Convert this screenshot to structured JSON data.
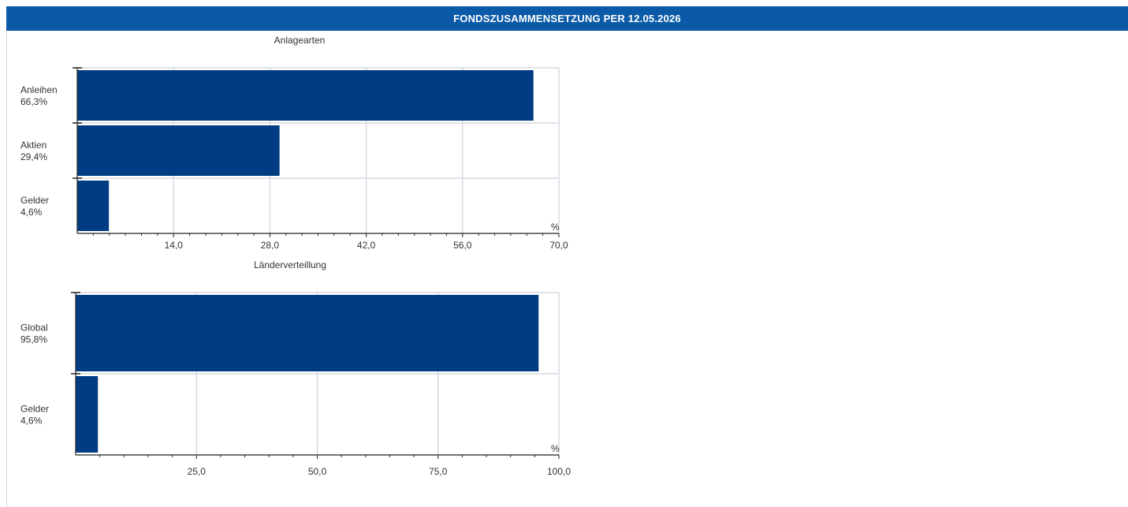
{
  "header": {
    "title": "FONDSZUSAMMENSETZUNG PER 12.05.2026"
  },
  "colors": {
    "header_bg": "#0b5aa7",
    "bar": "#003c82",
    "grid": "#d7dae4",
    "axis": "#222222"
  },
  "chart_data": [
    {
      "type": "bar",
      "orientation": "horizontal",
      "title": "Anlagearten",
      "categories": [
        "Anleihen",
        "Aktien",
        "Gelder"
      ],
      "value_labels": [
        "66,3%",
        "29,4%",
        "4,6%"
      ],
      "values": [
        66.3,
        29.4,
        4.6
      ],
      "unit": "%",
      "xlim": [
        0,
        70
      ],
      "ticks": [
        14,
        28,
        42,
        56,
        70
      ],
      "tick_labels": [
        "14,0",
        "28,0",
        "42,0",
        "56,0",
        "70,0"
      ],
      "grid": true
    },
    {
      "type": "bar",
      "orientation": "horizontal",
      "title": "Länderverteillung",
      "categories": [
        "Global",
        "Gelder"
      ],
      "value_labels": [
        "95,8%",
        "4,6%"
      ],
      "values": [
        95.8,
        4.6
      ],
      "unit": "%",
      "xlim": [
        0,
        100
      ],
      "ticks": [
        25,
        50,
        75,
        100
      ],
      "tick_labels": [
        "25,0",
        "50,0",
        "75,0",
        "100,0"
      ],
      "grid": true
    }
  ]
}
